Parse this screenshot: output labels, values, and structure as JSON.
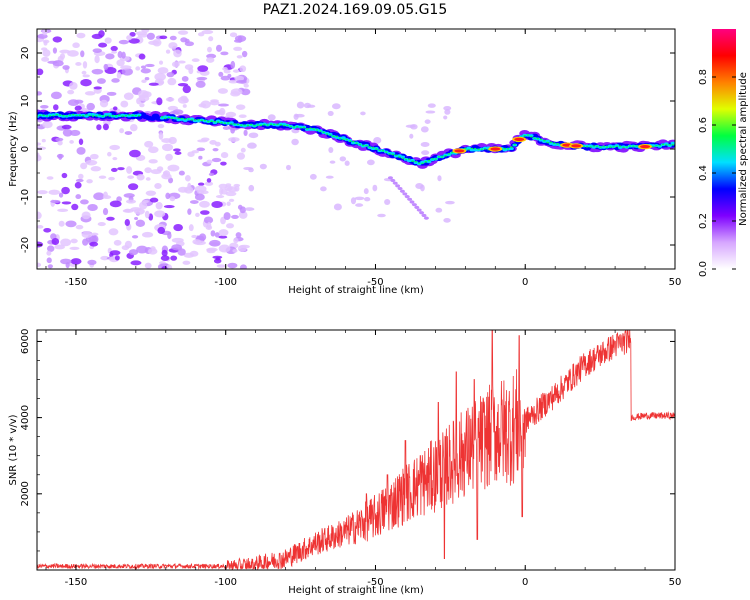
{
  "title": "PAZ1.2024.169.09.05.G15",
  "colors": {
    "series": "#ee3333",
    "axis": "#000000",
    "background": "#ffffff"
  },
  "chart_data": [
    {
      "type": "heatmap",
      "panel": "top",
      "xlabel": "Height of straight line (km)",
      "ylabel": "Frequency (Hz)",
      "xlim": [
        -163,
        50
      ],
      "ylim": [
        -25,
        25
      ],
      "xticks": [
        -150,
        -100,
        -50,
        0,
        50
      ],
      "yticks": [
        -20,
        -10,
        0,
        10,
        20
      ],
      "colorbar": {
        "label": "Normalized spectral amplitude",
        "ticks": [
          "0.0",
          "0.2",
          "0.4",
          "0.6",
          "0.8"
        ],
        "range": [
          0,
          1
        ],
        "colormap": [
          "#ffffff",
          "#d6a6ff",
          "#7e00ff",
          "#0000ff",
          "#00e0ff",
          "#00ff40",
          "#e0ff00",
          "#ff8000",
          "#ff0000",
          "#ff0080"
        ]
      },
      "ridge": {
        "x": [
          -163,
          -150,
          -140,
          -130,
          -120,
          -110,
          -100,
          -95,
          -90,
          -80,
          -70,
          -60,
          -50,
          -45,
          -40,
          -35,
          -30,
          -25,
          -20,
          -15,
          -10,
          -5,
          -2,
          0,
          5,
          10,
          20,
          30,
          40,
          50
        ],
        "y": [
          7,
          7,
          7,
          7,
          6.5,
          6,
          5.5,
          5,
          5,
          5,
          4,
          2,
          0,
          -1,
          -2,
          -3,
          -2,
          -1,
          0,
          0,
          0,
          0,
          2,
          3,
          2,
          1,
          0.5,
          0.5,
          0.5,
          1
        ]
      },
      "noise_region": {
        "x_start": -163,
        "x_end": -93,
        "amplitude": "low"
      }
    },
    {
      "type": "line",
      "panel": "bottom",
      "xlabel": "Height of straight line (km)",
      "ylabel": "SNR (10 * v/v)",
      "xlim": [
        -163,
        50
      ],
      "ylim": [
        0,
        6300
      ],
      "xticks": [
        -150,
        -100,
        -50,
        0,
        50
      ],
      "yticks": [
        2000,
        4000,
        6000
      ],
      "series": [
        {
          "trend_x": [
            -163,
            -100,
            -90,
            -80,
            -70,
            -60,
            -50,
            -40,
            -30,
            -20,
            -10,
            -5,
            0,
            10,
            20,
            30,
            35,
            35.2,
            40,
            45,
            50
          ],
          "trend_y": [
            100,
            100,
            150,
            300,
            700,
            1000,
            1400,
            2000,
            2500,
            3100,
            3600,
            3700,
            3900,
            4600,
            5400,
            5900,
            6050,
            4000,
            4050,
            4050,
            4050
          ],
          "spikes": [
            {
              "x": -53,
              "y": 2000
            },
            {
              "x": -46,
              "y": 2500
            },
            {
              "x": -40,
              "y": 3400
            },
            {
              "x": -35,
              "y": 3000
            },
            {
              "x": -29,
              "y": 4400
            },
            {
              "x": -23,
              "y": 5200
            },
            {
              "x": -17,
              "y": 5000
            },
            {
              "x": -11,
              "y": 6400
            },
            {
              "x": -2,
              "y": 6150
            },
            {
              "x": -1,
              "y": 1400
            },
            {
              "x": -16,
              "y": 800
            },
            {
              "x": -27,
              "y": 300
            }
          ]
        }
      ]
    }
  ]
}
